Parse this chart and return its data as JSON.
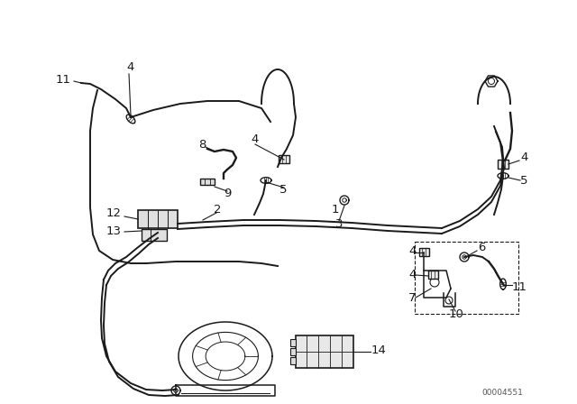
{
  "bg_color": "#ffffff",
  "line_color": "#1a1a1a",
  "part_number_text": "00004551",
  "figsize": [
    6.4,
    4.48
  ],
  "dpi": 100,
  "xlim": [
    0,
    640
  ],
  "ylim": [
    0,
    448
  ]
}
